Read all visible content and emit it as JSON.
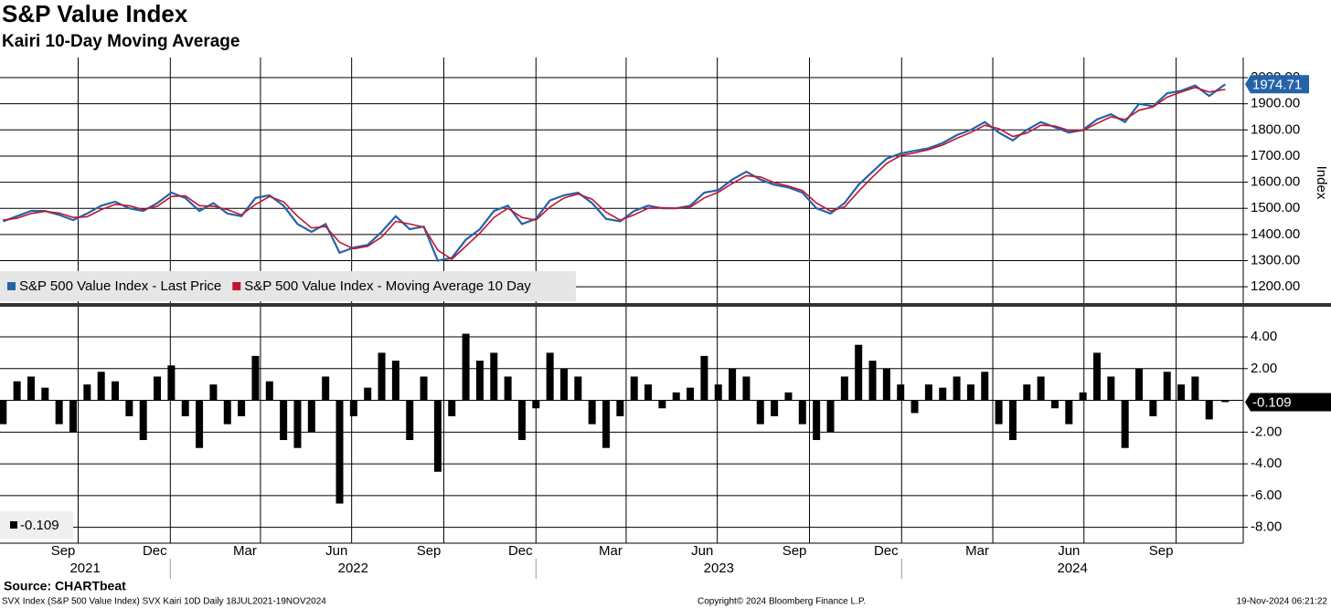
{
  "chart_data": [
    {
      "type": "line",
      "title": "S&P Value Index",
      "subtitle": "Kairi 10-Day Moving Average",
      "y_label": "Index",
      "x": [
        "2021-07-18",
        "2021-08-01",
        "2021-08-15",
        "2021-08-29",
        "2021-09-12",
        "2021-09-26",
        "2021-10-10",
        "2021-10-24",
        "2021-11-07",
        "2021-11-21",
        "2021-12-05",
        "2021-12-19",
        "2022-01-02",
        "2022-01-16",
        "2022-01-30",
        "2022-02-13",
        "2022-02-27",
        "2022-03-13",
        "2022-03-27",
        "2022-04-10",
        "2022-04-24",
        "2022-05-08",
        "2022-05-22",
        "2022-06-05",
        "2022-06-19",
        "2022-07-03",
        "2022-07-17",
        "2022-07-31",
        "2022-08-14",
        "2022-08-28",
        "2022-09-11",
        "2022-09-25",
        "2022-10-09",
        "2022-10-23",
        "2022-11-06",
        "2022-11-20",
        "2022-12-04",
        "2022-12-18",
        "2023-01-01",
        "2023-01-15",
        "2023-01-29",
        "2023-02-12",
        "2023-02-26",
        "2023-03-12",
        "2023-03-26",
        "2023-04-09",
        "2023-04-23",
        "2023-05-07",
        "2023-05-21",
        "2023-06-04",
        "2023-06-18",
        "2023-07-02",
        "2023-07-16",
        "2023-07-30",
        "2023-08-13",
        "2023-08-27",
        "2023-09-10",
        "2023-09-24",
        "2023-10-08",
        "2023-10-22",
        "2023-11-05",
        "2023-11-19",
        "2023-12-03",
        "2023-12-17",
        "2023-12-31",
        "2024-01-14",
        "2024-01-28",
        "2024-02-11",
        "2024-02-25",
        "2024-03-10",
        "2024-03-24",
        "2024-04-07",
        "2024-04-21",
        "2024-05-05",
        "2024-05-19",
        "2024-06-02",
        "2024-06-16",
        "2024-06-30",
        "2024-07-14",
        "2024-07-28",
        "2024-08-11",
        "2024-08-25",
        "2024-09-08",
        "2024-09-22",
        "2024-10-06",
        "2024-10-20",
        "2024-11-03",
        "2024-11-19"
      ],
      "series": [
        {
          "name": "S&P 500 Value Index - Last Price",
          "color": "#2563a8",
          "values": [
            1450,
            1470,
            1490,
            1490,
            1475,
            1455,
            1480,
            1510,
            1525,
            1500,
            1490,
            1520,
            1560,
            1540,
            1490,
            1520,
            1480,
            1470,
            1540,
            1550,
            1510,
            1440,
            1410,
            1440,
            1330,
            1350,
            1360,
            1410,
            1470,
            1420,
            1430,
            1300,
            1310,
            1380,
            1420,
            1490,
            1510,
            1440,
            1460,
            1530,
            1550,
            1560,
            1520,
            1460,
            1450,
            1490,
            1510,
            1500,
            1500,
            1510,
            1560,
            1570,
            1610,
            1640,
            1610,
            1590,
            1580,
            1560,
            1500,
            1480,
            1520,
            1590,
            1640,
            1690,
            1710,
            1720,
            1730,
            1750,
            1780,
            1800,
            1830,
            1790,
            1760,
            1800,
            1830,
            1810,
            1790,
            1800,
            1840,
            1860,
            1830,
            1900,
            1890,
            1940,
            1950,
            1970,
            1930,
            1974.71
          ]
        },
        {
          "name": "S&P 500 Value Index - Moving Average 10 Day",
          "color": "#c0172e",
          "values": [
            1455,
            1462,
            1480,
            1488,
            1482,
            1465,
            1468,
            1495,
            1515,
            1510,
            1495,
            1508,
            1545,
            1548,
            1510,
            1508,
            1495,
            1475,
            1515,
            1545,
            1525,
            1470,
            1425,
            1430,
            1370,
            1345,
            1355,
            1390,
            1450,
            1440,
            1428,
            1340,
            1305,
            1355,
            1405,
            1465,
            1500,
            1465,
            1455,
            1505,
            1540,
            1555,
            1535,
            1485,
            1455,
            1475,
            1500,
            1502,
            1500,
            1505,
            1540,
            1562,
            1595,
            1625,
            1620,
            1598,
            1585,
            1568,
            1520,
            1490,
            1505,
            1565,
            1620,
            1672,
            1702,
            1712,
            1725,
            1742,
            1768,
            1790,
            1818,
            1805,
            1775,
            1788,
            1818,
            1815,
            1798,
            1798,
            1825,
            1850,
            1840,
            1875,
            1888,
            1925,
            1945,
            1962,
            1945,
            1955
          ]
        }
      ],
      "xlim": [
        "2021-07-15",
        "2024-12-07"
      ],
      "ylim": [
        1134,
        2077
      ],
      "yticks": [
        {
          "value": 1200,
          "label": "1200.00"
        },
        {
          "value": 1300,
          "label": "1300.00"
        },
        {
          "value": 1400,
          "label": "1400.00"
        },
        {
          "value": 1500,
          "label": "1500.00"
        },
        {
          "value": 1600,
          "label": "1600.00"
        },
        {
          "value": 1700,
          "label": "1700.00"
        },
        {
          "value": 1800,
          "label": "1800.00"
        },
        {
          "value": 1900,
          "label": "1900.00"
        },
        {
          "value": 2000,
          "label": "2000.00"
        }
      ],
      "grid": true,
      "legend": "lower left"
    },
    {
      "type": "bar",
      "color": "#000000",
      "x": [
        "2021-07-18",
        "2021-08-01",
        "2021-08-15",
        "2021-08-29",
        "2021-09-12",
        "2021-09-26",
        "2021-10-10",
        "2021-10-24",
        "2021-11-07",
        "2021-11-21",
        "2021-12-05",
        "2021-12-19",
        "2022-01-02",
        "2022-01-16",
        "2022-01-30",
        "2022-02-13",
        "2022-02-27",
        "2022-03-13",
        "2022-03-27",
        "2022-04-10",
        "2022-04-24",
        "2022-05-08",
        "2022-05-22",
        "2022-06-05",
        "2022-06-19",
        "2022-07-03",
        "2022-07-17",
        "2022-07-31",
        "2022-08-14",
        "2022-08-28",
        "2022-09-11",
        "2022-09-25",
        "2022-10-09",
        "2022-10-23",
        "2022-11-06",
        "2022-11-20",
        "2022-12-04",
        "2022-12-18",
        "2023-01-01",
        "2023-01-15",
        "2023-01-29",
        "2023-02-12",
        "2023-02-26",
        "2023-03-12",
        "2023-03-26",
        "2023-04-09",
        "2023-04-23",
        "2023-05-07",
        "2023-05-21",
        "2023-06-04",
        "2023-06-18",
        "2023-07-02",
        "2023-07-16",
        "2023-07-30",
        "2023-08-13",
        "2023-08-27",
        "2023-09-10",
        "2023-09-24",
        "2023-10-08",
        "2023-10-22",
        "2023-11-05",
        "2023-11-19",
        "2023-12-03",
        "2023-12-17",
        "2023-12-31",
        "2024-01-14",
        "2024-01-28",
        "2024-02-11",
        "2024-02-25",
        "2024-03-10",
        "2024-03-24",
        "2024-04-07",
        "2024-04-21",
        "2024-05-05",
        "2024-05-19",
        "2024-06-02",
        "2024-06-16",
        "2024-06-30",
        "2024-07-14",
        "2024-07-28",
        "2024-08-11",
        "2024-08-25",
        "2024-09-08",
        "2024-09-22",
        "2024-10-06",
        "2024-10-20",
        "2024-11-03",
        "2024-11-19"
      ],
      "values": [
        -1.5,
        1.2,
        1.5,
        0.8,
        -1.5,
        -2.0,
        1.0,
        1.8,
        1.2,
        -1.0,
        -2.5,
        1.5,
        2.2,
        -1.0,
        -3.0,
        1.0,
        -1.5,
        -1.0,
        2.8,
        1.2,
        -2.5,
        -3.0,
        -2.0,
        1.5,
        -6.5,
        -1.0,
        0.8,
        3.0,
        2.5,
        -2.5,
        1.5,
        -4.5,
        -1.0,
        4.2,
        2.5,
        3.0,
        1.5,
        -2.5,
        -0.5,
        3.0,
        2.0,
        1.5,
        -1.5,
        -3.0,
        -1.0,
        1.5,
        1.0,
        -0.5,
        0.5,
        0.8,
        2.8,
        1.0,
        2.0,
        1.5,
        -1.5,
        -1.0,
        0.5,
        -1.5,
        -2.5,
        -2.0,
        1.5,
        3.5,
        2.5,
        2.0,
        1.0,
        -0.8,
        1.0,
        0.8,
        1.5,
        1.0,
        1.8,
        -1.5,
        -2.5,
        1.0,
        1.5,
        -0.5,
        -1.5,
        0.5,
        3.0,
        1.5,
        -3.0,
        2.0,
        -1.0,
        1.8,
        1.0,
        1.5,
        -1.2,
        -0.109
      ],
      "xlim": [
        "2021-07-15",
        "2024-12-07"
      ],
      "ylim": [
        -9,
        5.9
      ],
      "yticks": [
        {
          "value": 4,
          "label": "4.00"
        },
        {
          "value": 2,
          "label": "2.00"
        },
        {
          "value": -2,
          "label": "-2.00"
        },
        {
          "value": -4,
          "label": "-4.00"
        },
        {
          "value": -6,
          "label": "-6.00"
        },
        {
          "value": -8,
          "label": "-8.00"
        }
      ],
      "xticks": [
        {
          "value": "2021-09-01",
          "label": "Sep"
        },
        {
          "value": "2021-12-01",
          "label": "Dec"
        },
        {
          "value": "2022-03-01",
          "label": "Mar"
        },
        {
          "value": "2022-06-01",
          "label": "Jun"
        },
        {
          "value": "2022-09-01",
          "label": "Sep"
        },
        {
          "value": "2022-12-01",
          "label": "Dec"
        },
        {
          "value": "2023-03-01",
          "label": "Mar"
        },
        {
          "value": "2023-06-01",
          "label": "Jun"
        },
        {
          "value": "2023-09-01",
          "label": "Sep"
        },
        {
          "value": "2023-12-01",
          "label": "Dec"
        },
        {
          "value": "2024-03-01",
          "label": "Mar"
        },
        {
          "value": "2024-06-01",
          "label": "Jun"
        },
        {
          "value": "2024-09-01",
          "label": "Sep"
        }
      ],
      "year_ticks": [
        {
          "value": "2021-01-01",
          "label": "2021"
        },
        {
          "value": "2022-01-01",
          "label": "2022"
        },
        {
          "value": "2023-01-01",
          "label": "2023"
        },
        {
          "value": "2024-01-01",
          "label": "2024"
        }
      ],
      "grid": true,
      "legend": "lower left"
    }
  ],
  "source": "Source: CHARTbeat",
  "footer": {
    "left": "SVX Index (S&P 500 Value Index) SVX Kairi 10D  Daily 18JUL2021-19NOV2024",
    "center": "Copyright© 2024 Bloomberg Finance L.P.",
    "right": "19-Nov-2024 06:21:22"
  }
}
